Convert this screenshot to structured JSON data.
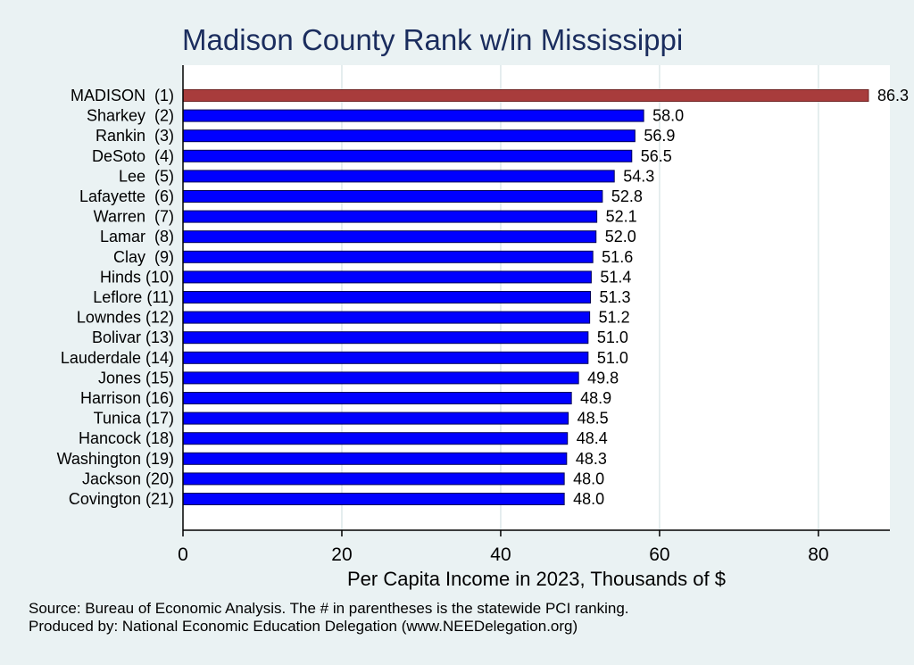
{
  "chart_data": {
    "type": "bar",
    "orientation": "horizontal",
    "title": "Madison County Rank w/in Mississippi",
    "xlabel": "Per Capita Income in 2023, Thousands of $",
    "ylabel": "",
    "xlim": [
      0,
      89
    ],
    "xticks": [
      0,
      20,
      40,
      60,
      80
    ],
    "grid": true,
    "categories": [
      "MADISON  (1)",
      "Sharkey  (2)",
      "Rankin  (3)",
      "DeSoto  (4)",
      "Lee  (5)",
      "Lafayette  (6)",
      "Warren  (7)",
      "Lamar  (8)",
      "Clay  (9)",
      "Hinds (10)",
      "Leflore (11)",
      "Lowndes (12)",
      "Bolivar (13)",
      "Lauderdale (14)",
      "Jones (15)",
      "Harrison (16)",
      "Tunica (17)",
      "Hancock (18)",
      "Washington (19)",
      "Jackson (20)",
      "Covington (21)"
    ],
    "values": [
      86.3,
      58.0,
      56.9,
      56.5,
      54.3,
      52.8,
      52.1,
      52.0,
      51.6,
      51.4,
      51.3,
      51.2,
      51.0,
      51.0,
      49.8,
      48.9,
      48.5,
      48.4,
      48.3,
      48.0,
      48.0
    ],
    "value_labels": [
      "86.3",
      "58.0",
      "56.9",
      "56.5",
      "54.3",
      "52.8",
      "52.1",
      "52.0",
      "51.6",
      "51.4",
      "51.3",
      "51.2",
      "51.0",
      "51.0",
      "49.8",
      "48.9",
      "48.5",
      "48.4",
      "48.3",
      "48.0",
      "48.0"
    ],
    "colors": {
      "highlight": "#a83c3c",
      "bar": "#0000ff",
      "bar_edge": "#000055",
      "grid": "#dde8e9",
      "plot_bg": "#ffffff",
      "page_bg": "#eaf2f3",
      "title": "#1b2d5e"
    },
    "highlight_index": 0
  },
  "footer": {
    "source": "Source: Bureau of Economic Analysis. The # in parentheses is the statewide PCI ranking.",
    "produced": "Produced by: National Economic Education Delegation (www.NEEDelegation.org)"
  }
}
